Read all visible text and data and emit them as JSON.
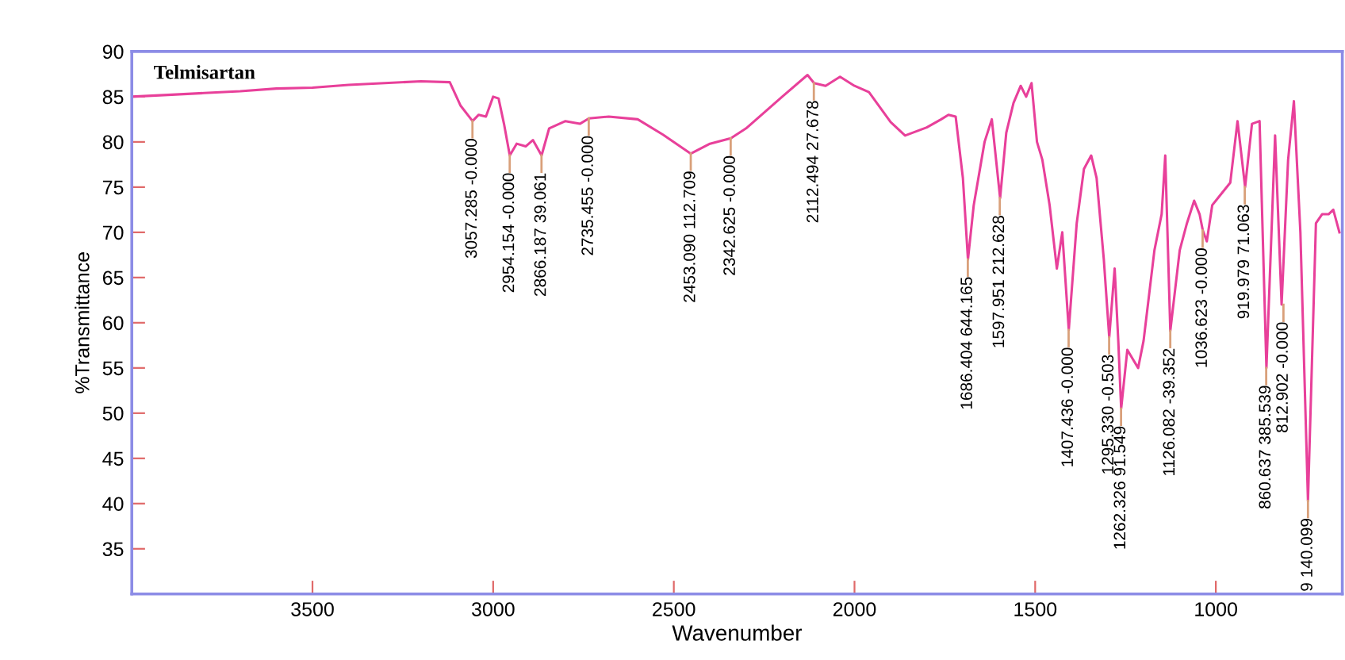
{
  "chart_data": {
    "type": "line",
    "title": "Telmisartan",
    "xlabel": "Wavenumber",
    "ylabel": "%Transmittance",
    "xlim": [
      4000,
      650
    ],
    "xticks": [
      3500,
      3000,
      2500,
      2000,
      1500,
      1000
    ],
    "ylim": [
      30,
      90
    ],
    "yticks": [
      35,
      40,
      45,
      50,
      55,
      60,
      65,
      70,
      75,
      80,
      85,
      90
    ],
    "grid": false,
    "legend": false,
    "marker": "none",
    "line_style": "solid",
    "series": [
      {
        "color": "#e8409a",
        "x": [
          4000,
          3900,
          3800,
          3700,
          3600,
          3500,
          3400,
          3300,
          3200,
          3120,
          3090,
          3057,
          3040,
          3020,
          3000,
          2985,
          2970,
          2954,
          2935,
          2910,
          2890,
          2866,
          2845,
          2800,
          2760,
          2735,
          2680,
          2600,
          2530,
          2453,
          2400,
          2342,
          2300,
          2200,
          2130,
          2112,
          2080,
          2040,
          2000,
          1960,
          1900,
          1860,
          1800,
          1760,
          1740,
          1720,
          1700,
          1686,
          1670,
          1640,
          1620,
          1597,
          1580,
          1560,
          1540,
          1525,
          1510,
          1495,
          1480,
          1460,
          1440,
          1425,
          1407,
          1385,
          1365,
          1345,
          1330,
          1310,
          1295,
          1280,
          1270,
          1262,
          1245,
          1230,
          1215,
          1200,
          1170,
          1150,
          1140,
          1126,
          1100,
          1080,
          1060,
          1045,
          1036,
          1025,
          1010,
          990,
          960,
          940,
          919,
          900,
          879,
          860,
          836,
          818,
          800,
          784,
          766,
          745,
          723,
          706,
          688,
          675,
          658
        ],
        "values": [
          85.0,
          85.2,
          85.4,
          85.6,
          85.9,
          86.0,
          86.3,
          86.5,
          86.7,
          86.6,
          84,
          82.3,
          83,
          82.8,
          85,
          84.8,
          82,
          78.5,
          79.8,
          79.5,
          80.2,
          78.5,
          81.5,
          82.3,
          82,
          82.6,
          82.8,
          82.5,
          80.8,
          78.7,
          79.8,
          80.4,
          81.5,
          85,
          87.4,
          86.5,
          86.2,
          87.2,
          86.2,
          85.5,
          82.2,
          80.7,
          81.6,
          82.5,
          83,
          82.8,
          76,
          67.0,
          73,
          80,
          82.5,
          73.8,
          81,
          84.3,
          86.2,
          85,
          86.5,
          80,
          78,
          73,
          66,
          70,
          59.2,
          71,
          77,
          78.5,
          76,
          67,
          58.4,
          66,
          58,
          50.5,
          57,
          56,
          55,
          58,
          68,
          72,
          78.5,
          59.1,
          68,
          71,
          73.5,
          72,
          70.2,
          69,
          73,
          74,
          75.5,
          82.3,
          75,
          82,
          82.3,
          55,
          80.7,
          62,
          78,
          84.5,
          70,
          40.3,
          71,
          72,
          72,
          72.5,
          70
        ]
      }
    ],
    "annotations": [
      {
        "text": "3057.285 -0.000",
        "x": 3057.285,
        "y": 82.3
      },
      {
        "text": "2954.154 -0.000",
        "x": 2954.154,
        "y": 78.5
      },
      {
        "text": "2866.187 39.061",
        "x": 2866.187,
        "y": 78.5
      },
      {
        "text": "2735.455 -0.000",
        "x": 2735.455,
        "y": 82.6
      },
      {
        "text": "2453.090 112.709",
        "x": 2453.09,
        "y": 78.7
      },
      {
        "text": "2342.625 -0.000",
        "x": 2342.625,
        "y": 80.4
      },
      {
        "text": "2112.494 27.678",
        "x": 2112.494,
        "y": 86.5
      },
      {
        "text": "1686.404 644.165",
        "x": 1686.404,
        "y": 67.0
      },
      {
        "text": "1597.951 212.628",
        "x": 1597.951,
        "y": 73.8
      },
      {
        "text": "1407.436 -0.000",
        "x": 1407.436,
        "y": 59.2
      },
      {
        "text": "1295.330 -0.503",
        "x": 1295.33,
        "y": 58.4
      },
      {
        "text": "1262.326 91.549",
        "x": 1262.326,
        "y": 50.5
      },
      {
        "text": "1126.082 -39.352",
        "x": 1126.082,
        "y": 59.1
      },
      {
        "text": "1036.623 -0.000",
        "x": 1036.623,
        "y": 70.2
      },
      {
        "text": "919.979 71.063",
        "x": 919.979,
        "y": 75.0
      },
      {
        "text": "860.637 385.539",
        "x": 860.637,
        "y": 55
      },
      {
        "text": "812.902 -0.000",
        "x": 812.902,
        "y": 62
      },
      {
        "text": "9 140.099",
        "x": 745,
        "y": 40.3
      }
    ]
  }
}
